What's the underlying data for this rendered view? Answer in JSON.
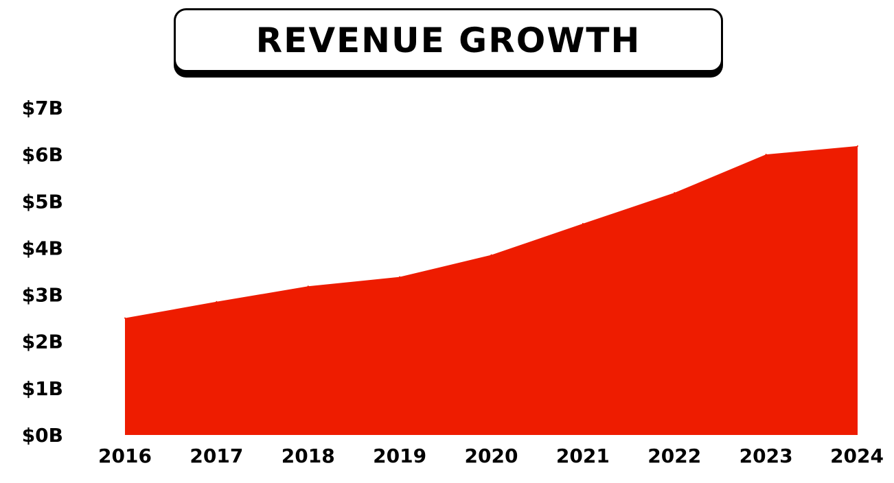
{
  "chart_data": {
    "type": "area",
    "title": "REVENUE GROWTH",
    "xlabel": "",
    "ylabel": "",
    "categories": [
      "2016",
      "2017",
      "2018",
      "2019",
      "2020",
      "2021",
      "2022",
      "2023",
      "2024"
    ],
    "series": [
      {
        "values": [
          2.5,
          2.85,
          3.18,
          3.38,
          3.85,
          4.52,
          5.18,
          6.0,
          6.18
        ],
        "color": "#ee1c00"
      }
    ],
    "ylim": [
      0,
      7
    ],
    "yticks": [
      0,
      1,
      2,
      3,
      4,
      5,
      6,
      7
    ],
    "ytick_labels": [
      "$0B",
      "$1B",
      "$2B",
      "$3B",
      "$4B",
      "$5B",
      "$6B",
      "$7B"
    ],
    "grid": false,
    "legend": "none"
  }
}
